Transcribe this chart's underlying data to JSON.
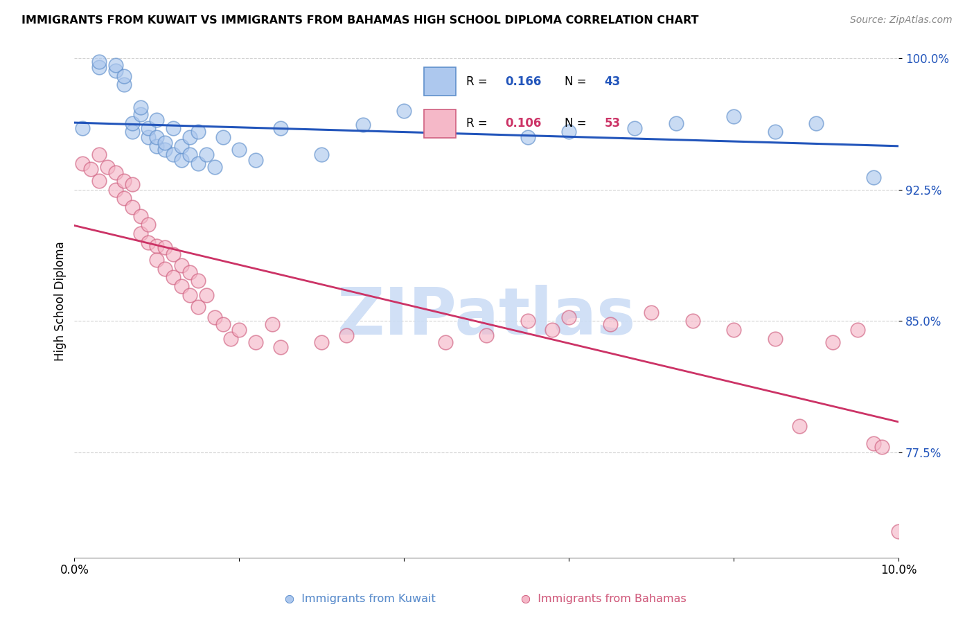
{
  "title": "IMMIGRANTS FROM KUWAIT VS IMMIGRANTS FROM BAHAMAS HIGH SCHOOL DIPLOMA CORRELATION CHART",
  "source": "Source: ZipAtlas.com",
  "ylabel": "High School Diploma",
  "xlim": [
    0.0,
    0.1
  ],
  "ylim": [
    0.715,
    1.008
  ],
  "yticks": [
    0.775,
    0.85,
    0.925,
    1.0
  ],
  "ytick_labels": [
    "77.5%",
    "85.0%",
    "92.5%",
    "100.0%"
  ],
  "xtick_vals": [
    0.0,
    0.02,
    0.04,
    0.06,
    0.08,
    0.1
  ],
  "xtick_labels": [
    "0.0%",
    "",
    "",
    "",
    "",
    "10.0%"
  ],
  "background_color": "#ffffff",
  "blue_scatter_face": "#adc8ee",
  "blue_scatter_edge": "#6090cc",
  "pink_scatter_face": "#f5b8c8",
  "pink_scatter_edge": "#d06080",
  "line_blue": "#2255bb",
  "line_pink": "#cc3366",
  "watermark_color": "#ccddf5",
  "watermark_text": "ZIPatlas",
  "legend_r1": "0.166",
  "legend_n1": "43",
  "legend_r2": "0.106",
  "legend_n2": "53",
  "kuwait_x": [
    0.001,
    0.003,
    0.003,
    0.005,
    0.005,
    0.006,
    0.006,
    0.007,
    0.007,
    0.008,
    0.008,
    0.009,
    0.009,
    0.01,
    0.01,
    0.01,
    0.011,
    0.011,
    0.012,
    0.012,
    0.013,
    0.013,
    0.014,
    0.014,
    0.015,
    0.015,
    0.016,
    0.017,
    0.018,
    0.02,
    0.022,
    0.025,
    0.03,
    0.035,
    0.04,
    0.055,
    0.06,
    0.068,
    0.073,
    0.08,
    0.085,
    0.09,
    0.097
  ],
  "kuwait_y": [
    0.96,
    0.995,
    0.998,
    0.993,
    0.996,
    0.985,
    0.99,
    0.958,
    0.963,
    0.968,
    0.972,
    0.955,
    0.96,
    0.95,
    0.955,
    0.965,
    0.948,
    0.952,
    0.945,
    0.96,
    0.942,
    0.95,
    0.945,
    0.955,
    0.94,
    0.958,
    0.945,
    0.938,
    0.955,
    0.948,
    0.942,
    0.96,
    0.945,
    0.962,
    0.97,
    0.955,
    0.958,
    0.96,
    0.963,
    0.967,
    0.958,
    0.963,
    0.932
  ],
  "bahamas_x": [
    0.001,
    0.002,
    0.003,
    0.003,
    0.004,
    0.005,
    0.005,
    0.006,
    0.006,
    0.007,
    0.007,
    0.008,
    0.008,
    0.009,
    0.009,
    0.01,
    0.01,
    0.011,
    0.011,
    0.012,
    0.012,
    0.013,
    0.013,
    0.014,
    0.014,
    0.015,
    0.015,
    0.016,
    0.017,
    0.018,
    0.019,
    0.02,
    0.022,
    0.024,
    0.025,
    0.03,
    0.033,
    0.045,
    0.05,
    0.055,
    0.058,
    0.06,
    0.065,
    0.07,
    0.075,
    0.08,
    0.085,
    0.088,
    0.092,
    0.095,
    0.097,
    0.098,
    0.1
  ],
  "bahamas_y": [
    0.94,
    0.937,
    0.93,
    0.945,
    0.938,
    0.935,
    0.925,
    0.93,
    0.92,
    0.928,
    0.915,
    0.91,
    0.9,
    0.905,
    0.895,
    0.893,
    0.885,
    0.892,
    0.88,
    0.888,
    0.875,
    0.882,
    0.87,
    0.878,
    0.865,
    0.873,
    0.858,
    0.865,
    0.852,
    0.848,
    0.84,
    0.845,
    0.838,
    0.848,
    0.835,
    0.838,
    0.842,
    0.838,
    0.842,
    0.85,
    0.845,
    0.852,
    0.848,
    0.855,
    0.85,
    0.845,
    0.84,
    0.79,
    0.838,
    0.845,
    0.78,
    0.778,
    0.73
  ]
}
